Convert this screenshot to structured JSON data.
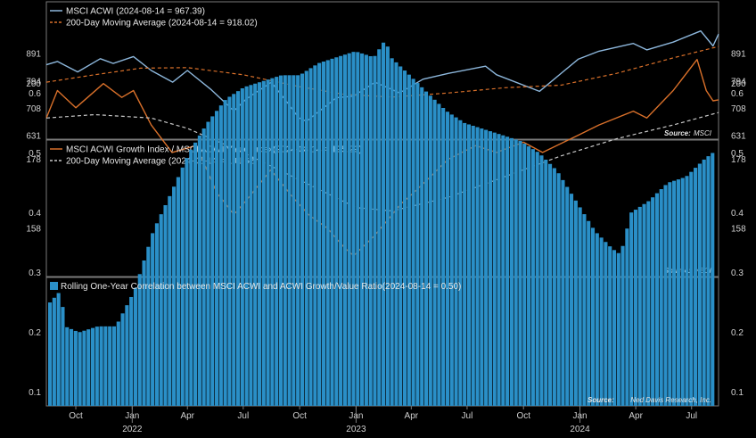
{
  "colors": {
    "background": "#000000",
    "panel_border": "#7a7a7a",
    "acwi_line": "#8db7dc",
    "acwi_ma": "#d9702a",
    "ratio_line": "#d9702a",
    "ratio_ma": "#c8c8c8",
    "corr_bar": "#2a8fc7",
    "source_msci": "#6aa0d8"
  },
  "x_axis": {
    "months": [
      "Oct",
      "Jan",
      "Apr",
      "Jul",
      "Oct",
      "Jan",
      "Apr",
      "Jul",
      "Oct",
      "Jan",
      "Apr",
      "Jul"
    ],
    "month_dates": [
      "2021-10-01",
      "2022-01-01",
      "2022-04-01",
      "2022-07-01",
      "2022-10-01",
      "2023-01-01",
      "2023-04-01",
      "2023-07-01",
      "2023-10-01",
      "2024-01-01",
      "2024-04-01",
      "2024-07-01"
    ],
    "years": [
      "2022",
      "2023",
      "2024"
    ],
    "year_dates": [
      "2022-01-01",
      "2023-01-01",
      "2024-01-01"
    ],
    "range": [
      "2021-08-14",
      "2024-08-14"
    ]
  },
  "chart_data": [
    {
      "type": "line",
      "panel": "top",
      "ylim": [
        631,
        990
      ],
      "yticks": [
        631,
        708,
        794,
        891
      ],
      "y_tick_labels": [
        "631",
        "708",
        "794",
        "891"
      ],
      "log_scale": true,
      "source_label": "Source:",
      "source_value": "MSCI",
      "series": [
        {
          "name": "MSCI ACWI (2024-08-14 = 967.39)",
          "style": "solid",
          "points": [
            [
              "2021-08-14",
              850
            ],
            [
              "2021-09-01",
              862
            ],
            [
              "2021-10-04",
              825
            ],
            [
              "2021-11-10",
              872
            ],
            [
              "2021-12-01",
              855
            ],
            [
              "2022-01-03",
              880
            ],
            [
              "2022-02-01",
              830
            ],
            [
              "2022-03-08",
              790
            ],
            [
              "2022-04-01",
              830
            ],
            [
              "2022-05-10",
              765
            ],
            [
              "2022-06-16",
              700
            ],
            [
              "2022-07-05",
              735
            ],
            [
              "2022-08-16",
              790
            ],
            [
              "2022-09-30",
              680
            ],
            [
              "2022-10-12",
              670
            ],
            [
              "2022-11-30",
              740
            ],
            [
              "2022-12-28",
              745
            ],
            [
              "2023-02-01",
              790
            ],
            [
              "2023-03-13",
              755
            ],
            [
              "2023-04-20",
              800
            ],
            [
              "2023-06-01",
              820
            ],
            [
              "2023-07-31",
              845
            ],
            [
              "2023-08-18",
              815
            ],
            [
              "2023-10-27",
              760
            ],
            [
              "2023-12-29",
              870
            ],
            [
              "2024-02-01",
              900
            ],
            [
              "2024-03-28",
              930
            ],
            [
              "2024-04-19",
              905
            ],
            [
              "2024-06-01",
              935
            ],
            [
              "2024-07-16",
              980
            ],
            [
              "2024-08-05",
              920
            ],
            [
              "2024-08-14",
              967.39
            ]
          ]
        },
        {
          "name": "200-Day Moving Average (2024-08-14 = 918.02)",
          "style": "dashed",
          "points": [
            [
              "2021-08-14",
              790
            ],
            [
              "2021-11-01",
              815
            ],
            [
              "2022-01-15",
              838
            ],
            [
              "2022-04-01",
              840
            ],
            [
              "2022-07-01",
              815
            ],
            [
              "2022-10-01",
              775
            ],
            [
              "2022-12-15",
              750
            ],
            [
              "2023-03-01",
              742
            ],
            [
              "2023-06-01",
              755
            ],
            [
              "2023-09-01",
              772
            ],
            [
              "2023-12-01",
              780
            ],
            [
              "2024-03-01",
              820
            ],
            [
              "2024-06-01",
              875
            ],
            [
              "2024-08-14",
              918.02
            ]
          ]
        }
      ]
    },
    {
      "type": "line",
      "panel": "middle",
      "ylim": [
        145,
        216
      ],
      "yticks": [
        158,
        178,
        200
      ],
      "y_tick_labels": [
        "158",
        "178",
        "200"
      ],
      "log_scale": false,
      "source_label": "Source:",
      "source_value": "MSCI",
      "series": [
        {
          "name": "MSCI ACWI Growth Index / MSCI ACWI Value Index(2024-08-14 = 195.29)",
          "style": "solid",
          "points": [
            [
              "2021-08-14",
              190
            ],
            [
              "2021-09-01",
              198
            ],
            [
              "2021-10-01",
              193
            ],
            [
              "2021-11-15",
              200
            ],
            [
              "2021-12-15",
              196
            ],
            [
              "2022-01-03",
              198
            ],
            [
              "2022-02-01",
              188
            ],
            [
              "2022-03-07",
              180
            ],
            [
              "2022-04-15",
              182
            ],
            [
              "2022-05-20",
              168
            ],
            [
              "2022-06-16",
              162
            ],
            [
              "2022-07-15",
              168
            ],
            [
              "2022-08-15",
              175
            ],
            [
              "2022-09-15",
              168
            ],
            [
              "2022-10-15",
              162
            ],
            [
              "2022-11-15",
              158
            ],
            [
              "2022-12-15",
              152
            ],
            [
              "2022-12-28",
              150
            ],
            [
              "2023-02-01",
              156
            ],
            [
              "2023-03-15",
              165
            ],
            [
              "2023-04-15",
              170
            ],
            [
              "2023-05-31",
              178
            ],
            [
              "2023-07-15",
              182
            ],
            [
              "2023-08-18",
              180
            ],
            [
              "2023-10-01",
              183
            ],
            [
              "2023-11-01",
              180
            ],
            [
              "2023-12-29",
              185
            ],
            [
              "2024-02-01",
              188
            ],
            [
              "2024-03-28",
              192
            ],
            [
              "2024-04-19",
              190
            ],
            [
              "2024-06-01",
              198
            ],
            [
              "2024-07-10",
              207
            ],
            [
              "2024-07-25",
              198
            ],
            [
              "2024-08-05",
              195
            ],
            [
              "2024-08-14",
              195.29
            ]
          ]
        },
        {
          "name": "200-Day Moving Average (2024-08-14 = 191.62)",
          "style": "dashed",
          "points": [
            [
              "2021-08-14",
              190
            ],
            [
              "2021-11-01",
              191
            ],
            [
              "2022-02-01",
              190
            ],
            [
              "2022-04-01",
              187
            ],
            [
              "2022-07-01",
              180
            ],
            [
              "2022-10-01",
              172
            ],
            [
              "2023-01-01",
              164
            ],
            [
              "2023-03-01",
              163
            ],
            [
              "2023-06-01",
              167
            ],
            [
              "2023-09-01",
              173
            ],
            [
              "2023-12-01",
              179
            ],
            [
              "2024-03-01",
              184
            ],
            [
              "2024-06-01",
              188
            ],
            [
              "2024-08-14",
              191.62
            ]
          ]
        }
      ]
    },
    {
      "type": "bar",
      "panel": "bottom",
      "ylim": [
        0.08,
        0.72
      ],
      "yticks": [
        0.1,
        0.2,
        0.3,
        0.4,
        0.5,
        0.6
      ],
      "y_tick_labels": [
        "0.1",
        "0.2",
        "0.3",
        "0.4",
        "0.5",
        "0.6"
      ],
      "source_label": "Source:",
      "source_value": "Ned Davis Research, Inc.",
      "series": [
        {
          "name": "Rolling One-Year Correlation between MSCI ACWI and ACWI Growth/Value Ratio(2024-08-14 = 0.50)",
          "points": [
            [
              "2021-08-14",
              0.25
            ],
            [
              "2021-09-01",
              0.27
            ],
            [
              "2021-09-08",
              0.21
            ],
            [
              "2021-10-01",
              0.2
            ],
            [
              "2021-11-01",
              0.21
            ],
            [
              "2021-12-01",
              0.21
            ],
            [
              "2022-01-01",
              0.27
            ],
            [
              "2022-02-01",
              0.37
            ],
            [
              "2022-03-01",
              0.43
            ],
            [
              "2022-04-01",
              0.5
            ],
            [
              "2022-05-01",
              0.55
            ],
            [
              "2022-06-01",
              0.59
            ],
            [
              "2022-07-01",
              0.61
            ],
            [
              "2022-08-01",
              0.62
            ],
            [
              "2022-09-01",
              0.63
            ],
            [
              "2022-10-01",
              0.63
            ],
            [
              "2022-11-01",
              0.65
            ],
            [
              "2022-12-01",
              0.66
            ],
            [
              "2023-01-01",
              0.67
            ],
            [
              "2023-02-01",
              0.66
            ],
            [
              "2023-02-20",
              0.69
            ],
            [
              "2023-03-01",
              0.66
            ],
            [
              "2023-04-01",
              0.63
            ],
            [
              "2023-05-01",
              0.6
            ],
            [
              "2023-06-01",
              0.57
            ],
            [
              "2023-07-01",
              0.55
            ],
            [
              "2023-08-01",
              0.54
            ],
            [
              "2023-09-01",
              0.53
            ],
            [
              "2023-10-01",
              0.52
            ],
            [
              "2023-11-01",
              0.5
            ],
            [
              "2023-12-01",
              0.47
            ],
            [
              "2024-01-01",
              0.42
            ],
            [
              "2024-02-01",
              0.37
            ],
            [
              "2024-03-01",
              0.34
            ],
            [
              "2024-03-15",
              0.33
            ],
            [
              "2024-04-01",
              0.4
            ],
            [
              "2024-05-01",
              0.42
            ],
            [
              "2024-06-01",
              0.45
            ],
            [
              "2024-07-01",
              0.46
            ],
            [
              "2024-08-01",
              0.49
            ],
            [
              "2024-08-14",
              0.5
            ]
          ]
        }
      ]
    }
  ]
}
